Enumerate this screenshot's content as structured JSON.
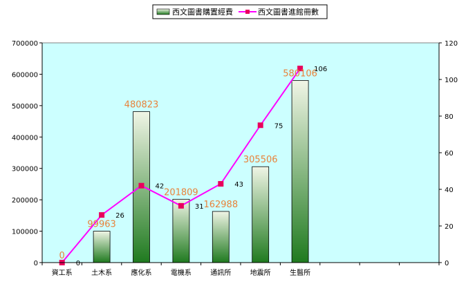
{
  "chart_data": {
    "type": "bar",
    "categories": [
      "資工系",
      "土木系",
      "應化系",
      "電機系",
      "通訊所",
      "地震所",
      "生醫所",
      "",
      "",
      ""
    ],
    "series": [
      {
        "name": "西文圖書購置經費",
        "kind": "bar",
        "axis": "left",
        "values": [
          0,
          99963,
          480823,
          201809,
          162988,
          305506,
          580106,
          null,
          null,
          null
        ],
        "labels": [
          "0",
          "99963",
          "480823",
          "201809",
          "162988",
          "305506",
          "580106",
          "",
          "",
          ""
        ]
      },
      {
        "name": "西文圖書進館冊數",
        "kind": "line",
        "axis": "right",
        "values": [
          0,
          26,
          42,
          31,
          43,
          75,
          106,
          null,
          null,
          null
        ],
        "labels": [
          "0",
          "26",
          "42",
          "31",
          "43",
          "75",
          "106",
          "",
          "",
          ""
        ]
      }
    ],
    "y_left": {
      "min": 0,
      "max": 700000,
      "ticks": [
        "0",
        "100000",
        "200000",
        "300000",
        "400000",
        "500000",
        "600000",
        "700000"
      ]
    },
    "y_right": {
      "min": 0,
      "max": 120,
      "ticks": [
        "0",
        "20",
        "40",
        "60",
        "80",
        "100",
        "120"
      ]
    },
    "legend": "top-center",
    "grid": false,
    "colors": {
      "plot_bg": "#ccffff",
      "bar_top": "#f0f5e6",
      "bar_bottom": "#1f7a1f",
      "line": "#ff00ff",
      "marker": "#e8005c",
      "bar_label": "#e8823a"
    }
  }
}
